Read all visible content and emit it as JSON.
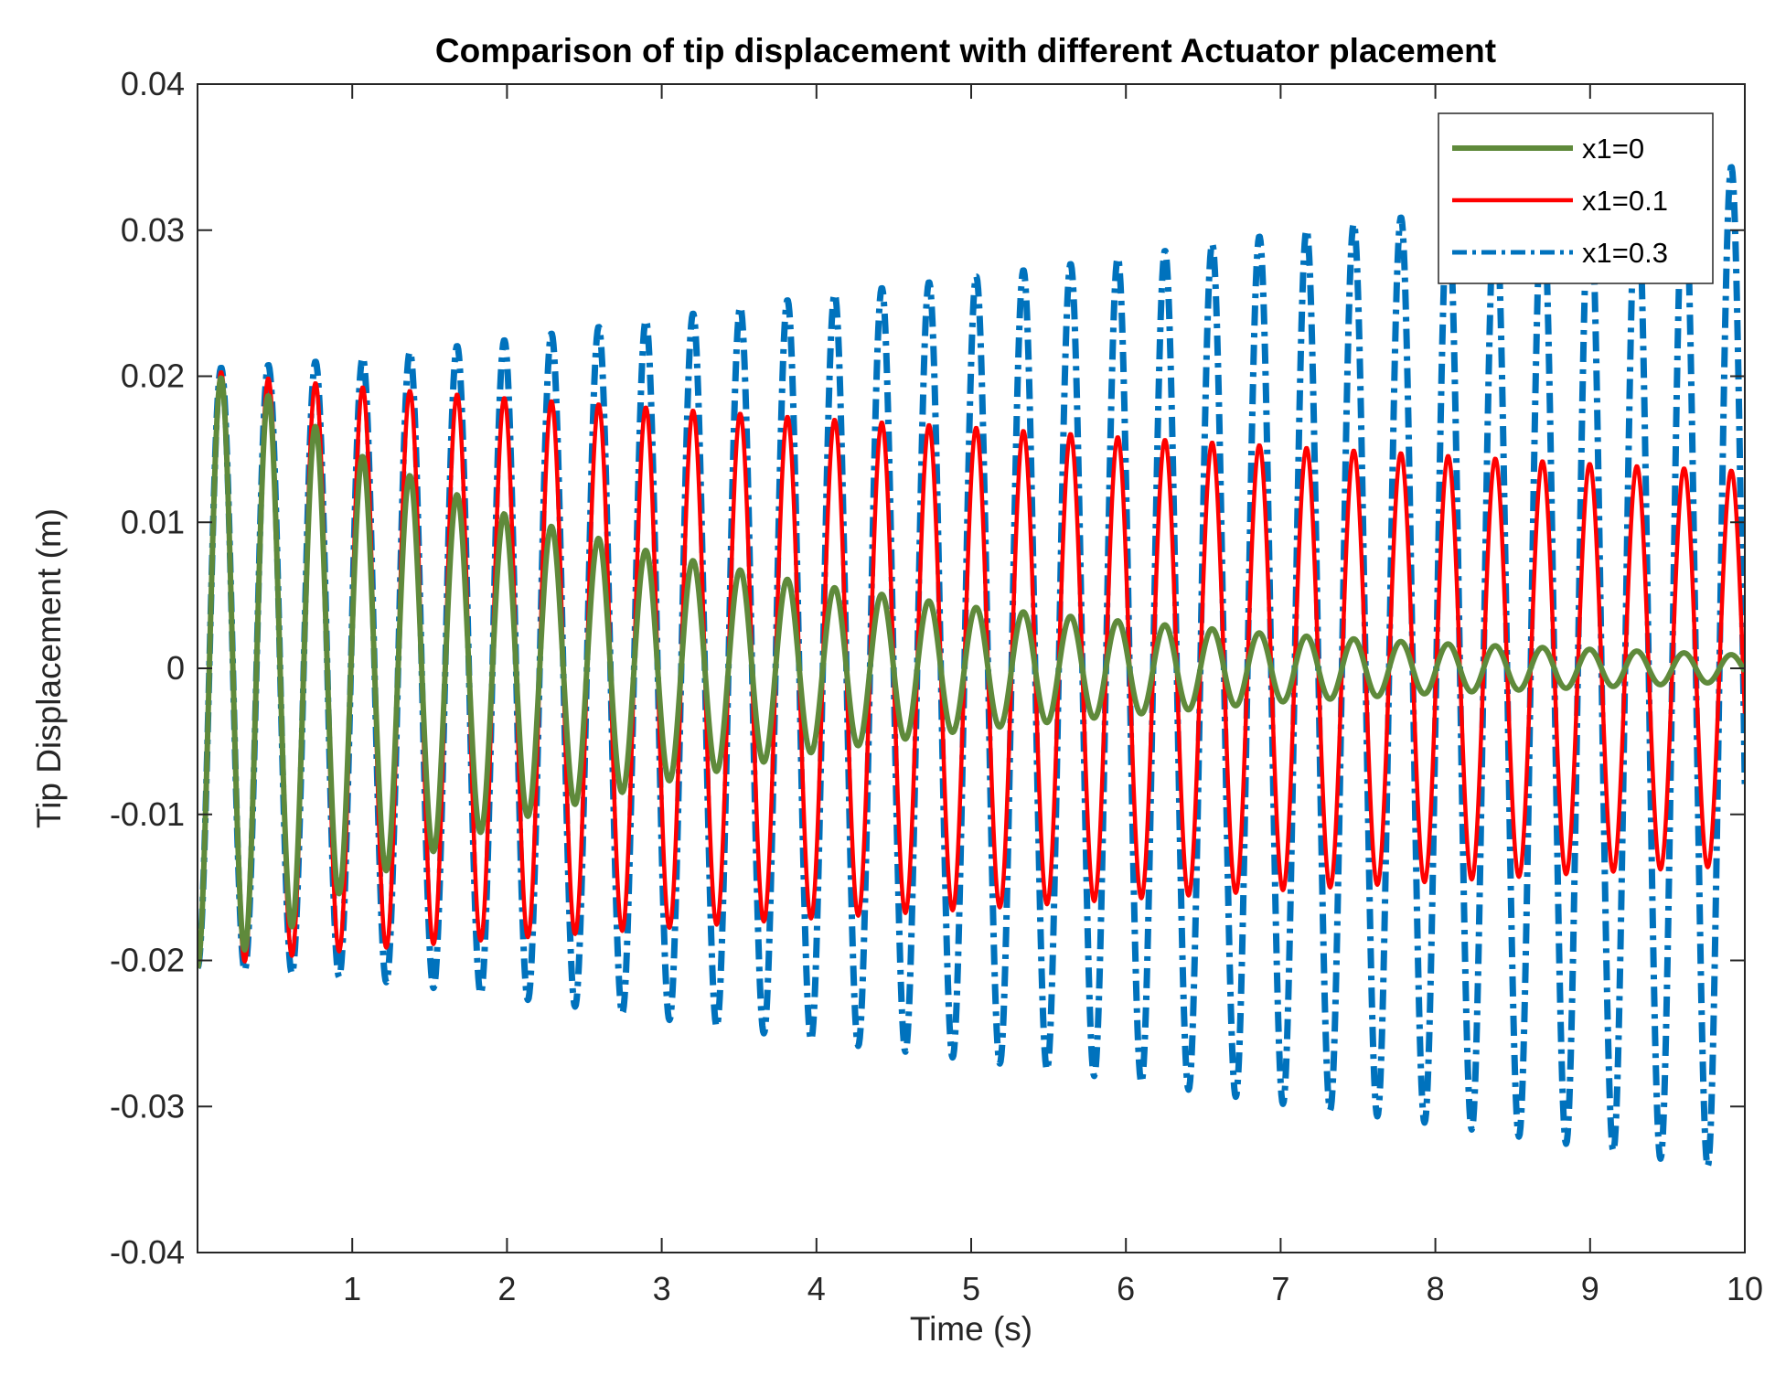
{
  "chart_data": {
    "type": "line",
    "title": "Comparison of tip displacement with different Actuator placement",
    "xlabel": "Time (s)",
    "ylabel": "Tip Displacement (m)",
    "xlim": [
      0,
      10
    ],
    "ylim": [
      -0.04,
      0.04
    ],
    "xticks": [
      1,
      2,
      3,
      4,
      5,
      6,
      7,
      8,
      9,
      10
    ],
    "xtick_labels": [
      "1",
      "2",
      "3",
      "4",
      "5",
      "6",
      "7",
      "8",
      "9",
      "10"
    ],
    "yticks": [
      -0.04,
      -0.03,
      -0.02,
      -0.01,
      0,
      0.01,
      0.02,
      0.03,
      0.04
    ],
    "ytick_labels": [
      "-0.04",
      "-0.03",
      "-0.02",
      "-0.01",
      "0",
      "0.01",
      "0.02",
      "0.03",
      "0.04"
    ],
    "grid": false,
    "legend_position": "top-right",
    "oscillation": {
      "period_s": 0.305,
      "initial_value": -0.0205,
      "samples": 2000
    },
    "series": [
      {
        "name": "x1=0",
        "color": "#5f8a3b",
        "style": "solid",
        "amplitude_t": [
          0,
          0.5,
          1,
          2,
          3,
          4,
          5,
          6,
          7,
          8,
          9,
          10
        ],
        "amplitude": [
          0.0205,
          0.0185,
          0.0148,
          0.0105,
          0.0078,
          0.0057,
          0.0042,
          0.0032,
          0.0023,
          0.0017,
          0.0013,
          0.0009
        ]
      },
      {
        "name": "x1=0.1",
        "color": "#ff0000",
        "style": "solid",
        "amplitude_t": [
          0,
          0.5,
          1,
          2,
          3,
          4,
          5,
          6,
          7,
          8,
          9,
          10
        ],
        "amplitude": [
          0.0205,
          0.0198,
          0.0193,
          0.0185,
          0.0178,
          0.0171,
          0.0165,
          0.0158,
          0.0152,
          0.0146,
          0.014,
          0.0135
        ]
      },
      {
        "name": "x1=0.3",
        "color": "#0072bd",
        "style": "dashdot",
        "amplitude_t": [
          0,
          0.5,
          1,
          2,
          3,
          4,
          5,
          6,
          7,
          8,
          9,
          10
        ],
        "amplitude": [
          0.0205,
          0.0208,
          0.0212,
          0.0225,
          0.024,
          0.0255,
          0.0268,
          0.0282,
          0.0298,
          0.0312,
          0.0328,
          0.0345
        ]
      }
    ]
  }
}
